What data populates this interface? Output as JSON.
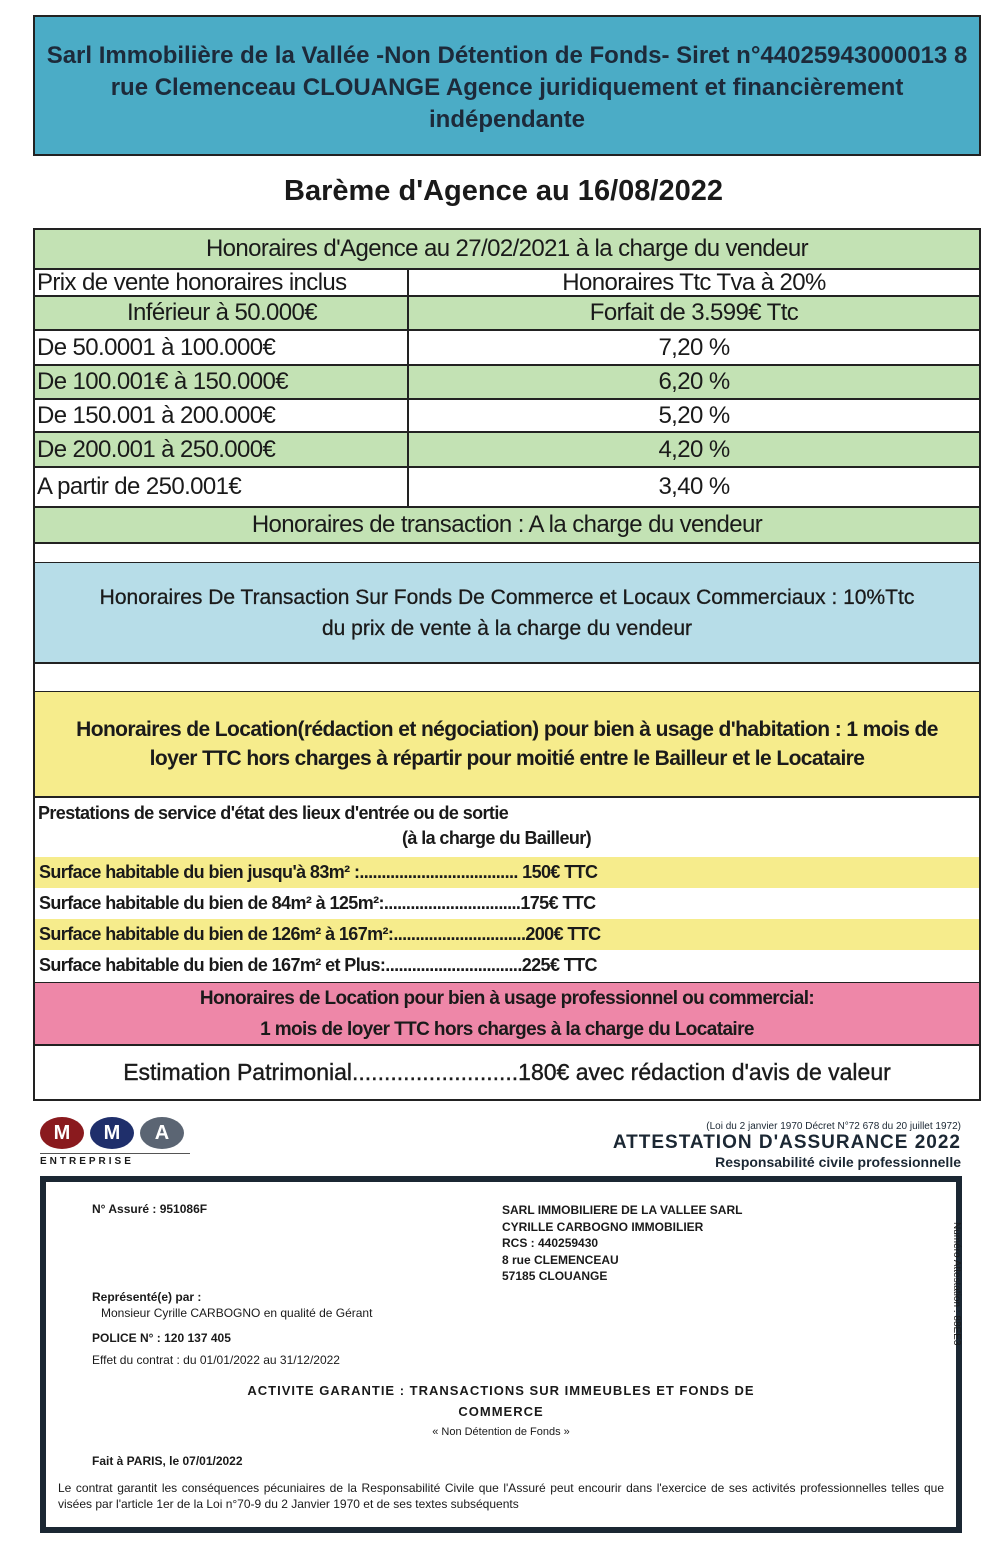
{
  "header": {
    "line1": "Sarl Immobilière de la Vallée -Non Détention de Fonds-  Siret n°44025943000013  8",
    "line2": "rue Clemenceau CLOUANGE    Agence juridiquement et financièrement",
    "line3": "indépendante"
  },
  "title": "Barème d'Agence au 16/08/2022",
  "table": {
    "heading": "Honoraires d'Agence au 27/02/2021 à la charge du vendeur",
    "col1": "Prix de vente honoraires inclus",
    "col2": "Honoraires Ttc Tva à 20%",
    "rows": [
      {
        "range": "Inférieur à 50.000€",
        "fee": "Forfait de 3.599€ Ttc"
      },
      {
        "range": "De 50.0001 à 100.000€",
        "fee": "7,20 %"
      },
      {
        "range": "De 100.001€ à 150.000€",
        "fee": "6,20 %"
      },
      {
        "range": "De 150.001 à 200.000€",
        "fee": "5,20 %"
      },
      {
        "range": "De 200.001 à 250.000€",
        "fee": "4,20 %"
      },
      {
        "range": "A partir de 250.001€",
        "fee": "3,40 %"
      }
    ],
    "footer": "Honoraires de transaction : A la charge du vendeur"
  },
  "commerce": {
    "line1": "Honoraires De Transaction Sur Fonds De Commerce et Locaux   Commerciaux : 10%Ttc",
    "line2": "du prix de vente à la charge du vendeur"
  },
  "location": {
    "line1": "Honoraires de Location(rédaction et négociation) pour bien à usage d'habitation  : 1 mois de",
    "line2": "loyer TTC hors charges à répartir pour moitié entre le Bailleur et le Locataire"
  },
  "prestations": {
    "title": "Prestations de service d'état des lieux d'entrée ou de sortie",
    "subtitle": "(à la charge du Bailleur)",
    "items": [
      "Surface habitable du bien jusqu'à 83m² :.................................... 150€ TTC",
      "Surface habitable du bien de 84m² à 125m²:...............................175€ TTC",
      "Surface habitable du bien de 126m² à 167m²:..............................200€ TTC",
      "Surface habitable du bien de 167m² et Plus:...............................225€ TTC"
    ]
  },
  "pro": {
    "line1": "Honoraires de Location pour bien à usage professionnel ou commercial:",
    "line2": "1 mois de loyer TTC hors charges à la charge du Locataire"
  },
  "estimation": "Estimation Patrimonial..........................180€ avec rédaction d'avis de valeur",
  "insurance": {
    "logo_letters": [
      "M",
      "M",
      "A"
    ],
    "logo_sub": "ENTREPRISE",
    "law": "(Loi du 2 janvier 1970   Décret N°72 678 du 20 juillet 1972)",
    "title": "ATTESTATION D'ASSURANCE 2022",
    "subtitle": "Responsabilité civile professionnelle",
    "assure": "N° Assuré : 951086F",
    "company": [
      "SARL IMMOBILIERE DE LA VALLEE SARL",
      "CYRILLE CARBOGNO IMMOBILIER",
      "RCS : 440259430",
      "8 rue CLEMENCEAU",
      "57185 CLOUANGE"
    ],
    "attestation_no": "Numéro Attestation : 88EE3",
    "represented_label": "Représenté(e) par :",
    "represented": "Monsieur Cyrille CARBOGNO en qualité de Gérant",
    "police": "POLICE N° : 120 137 405",
    "effect": "Effet du contrat : du 01/01/2022 au 31/12/2022",
    "activity1": "ACTIVITE GARANTIE : TRANSACTIONS SUR IMMEUBLES ET FONDS DE",
    "activity2": "COMMERCE",
    "activity3": "« Non Détention de Fonds »",
    "fait": "Fait à PARIS, le 07/01/2022",
    "legal": "Le contrat garantit les conséquences pécuniaires de la Responsabilité Civile que l'Assuré peut encourir dans l'exercice de ses activités professionnelles telles que visées par l'article 1er de la Loi n°70-9 du 2 Janvier 1970 et de ses textes subséquents"
  },
  "colors": {
    "header": "#4bacc6",
    "green": "#c3e2b4",
    "lightblue": "#b7dde8",
    "yellow": "#f6ec8c",
    "pink": "#ee87a8"
  }
}
